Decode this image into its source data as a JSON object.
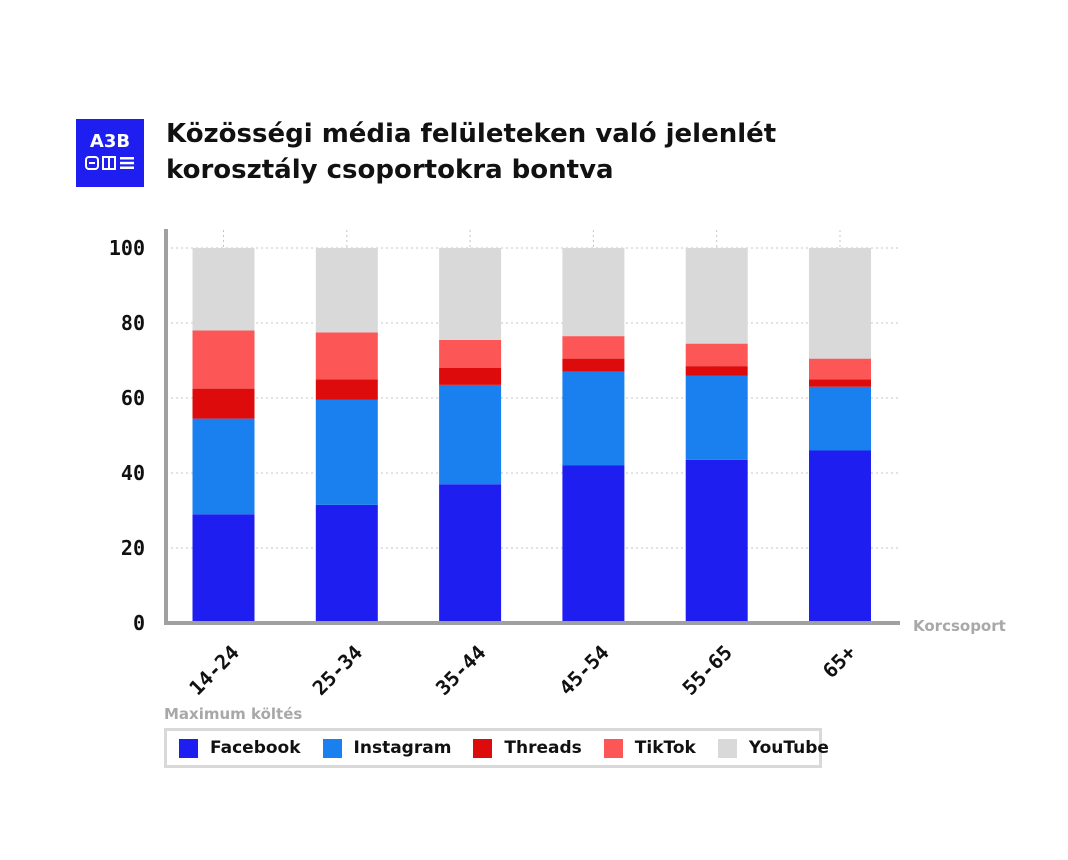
{
  "brand": {
    "logo_text": "A3B",
    "color": "#1e1ef0"
  },
  "title": {
    "line1": "Közösségi média felületeken való jelenlét",
    "line2": "korosztály csoportokra bontva"
  },
  "legend": {
    "title": "Maximum költés",
    "items": [
      {
        "name": "Facebook",
        "color": "#1e1ef0"
      },
      {
        "name": "Instagram",
        "color": "#1a7fef"
      },
      {
        "name": "Threads",
        "color": "#dd0b0b"
      },
      {
        "name": "TikTok",
        "color": "#fc5656"
      },
      {
        "name": "YouTube",
        "color": "#d9d9d9"
      }
    ]
  },
  "chart_data": {
    "type": "bar",
    "stacked": true,
    "xlabel": "Korcsoport",
    "ylabel": "",
    "ylim": [
      0,
      100
    ],
    "yticks": [
      0,
      20,
      40,
      60,
      80,
      100
    ],
    "grid": true,
    "legend_position": "bottom",
    "categories": [
      "14-24",
      "25-34",
      "35-44",
      "45-54",
      "55-65",
      "65+"
    ],
    "series": [
      {
        "name": "Facebook",
        "color": "#1e1ef0",
        "values": [
          29,
          31.5,
          37,
          42,
          43.5,
          46
        ]
      },
      {
        "name": "Instagram",
        "color": "#1a7fef",
        "values": [
          25.5,
          28,
          26.5,
          25,
          22.5,
          17
        ]
      },
      {
        "name": "Threads",
        "color": "#dd0b0b",
        "values": [
          8,
          5.5,
          4.5,
          3.5,
          2.5,
          2
        ]
      },
      {
        "name": "TikTok",
        "color": "#fc5656",
        "values": [
          15.5,
          12.5,
          7.5,
          6,
          6,
          5.5
        ]
      },
      {
        "name": "YouTube",
        "color": "#d9d9d9",
        "values": [
          22,
          22.5,
          24.5,
          23.5,
          25.5,
          29.5
        ]
      }
    ]
  }
}
